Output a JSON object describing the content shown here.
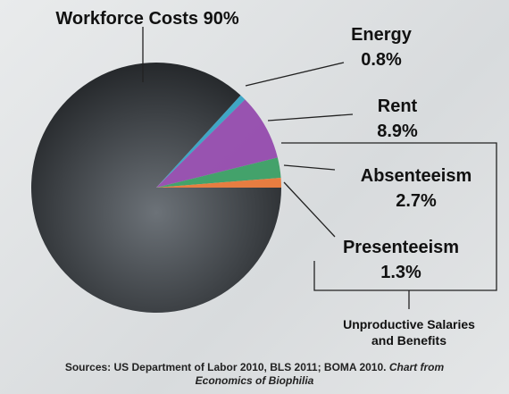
{
  "chart_data": {
    "type": "pie",
    "categories": [
      "Workforce Costs",
      "Energy",
      "Rent",
      "Absenteeism",
      "Presenteeism"
    ],
    "values": [
      90,
      0.8,
      8.9,
      2.7,
      1.3
    ],
    "value_labels": [
      "90%",
      "0.8%",
      "8.9%",
      "2.7%",
      "1.3%"
    ],
    "colors": [
      "#3b3f43",
      "#2a9dc0",
      "#8e3fa8",
      "#2e9a5a",
      "#e8702a"
    ],
    "annotation": [
      "Unproductive Salaries",
      "and Benefits"
    ],
    "source": {
      "text": "Sources: US Department of Labor 2010, BLS 2011; BOMA 2010.",
      "italic": "Chart from Economics of Biophilia"
    }
  }
}
